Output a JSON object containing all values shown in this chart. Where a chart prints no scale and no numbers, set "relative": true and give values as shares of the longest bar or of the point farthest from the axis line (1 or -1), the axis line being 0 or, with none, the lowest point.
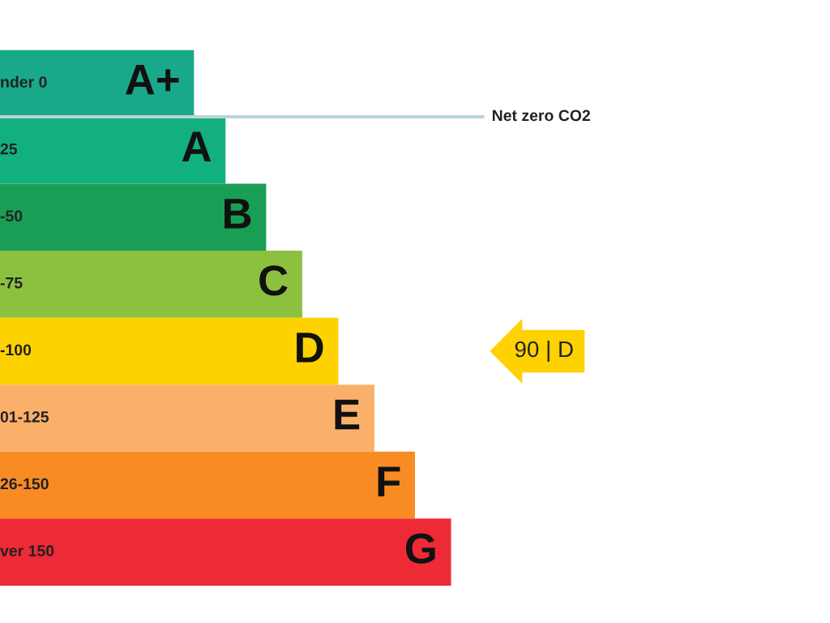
{
  "chart_data": {
    "type": "bar",
    "orientation": "horizontal",
    "relative": true,
    "categories": [
      "A+",
      "A",
      "B",
      "C",
      "D",
      "E",
      "F",
      "G"
    ],
    "values": [
      0.43,
      0.5,
      0.59,
      0.67,
      0.75,
      0.83,
      0.92,
      1
    ],
    "colors": [
      "#1aa88a",
      "#12b07f",
      "#1a9e55",
      "#8cc13f",
      "#fed100",
      "#fbb06a",
      "#f98b25",
      "#ee2a36"
    ],
    "annotations": [
      "nder 0",
      "25",
      "-50",
      "-75",
      "-100",
      "01-125",
      "26-150",
      "ver 150",
      "Net zero CO2",
      "90 | D"
    ]
  }
}
